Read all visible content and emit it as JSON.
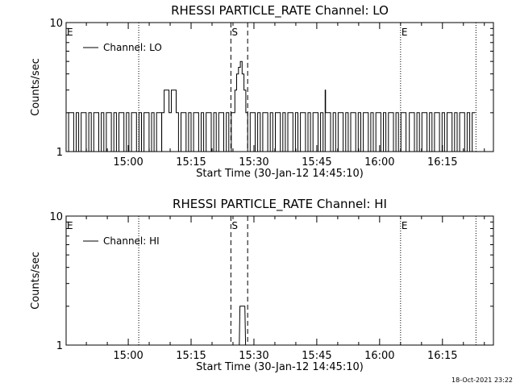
{
  "timestamp": "18-Oct-2021 23:22",
  "chart_data": [
    {
      "type": "line",
      "title": "RHESSI PARTICLE_RATE Channel: LO",
      "xlabel": "Start Time (30-Jan-12 14:45:10)",
      "ylabel": "Counts/sec",
      "yscale": "log",
      "ylim": [
        1,
        10
      ],
      "y_tick_labels": [
        "1",
        "10"
      ],
      "xlim_minutes": [
        0,
        102
      ],
      "x_tick_labels": [
        "15:00",
        "15:15",
        "15:30",
        "15:45",
        "16:00",
        "16:15"
      ],
      "legend": {
        "entries": [
          "Channel: LO"
        ],
        "placement": "top-left"
      },
      "markers": [
        {
          "label": "E",
          "time": "14:45:10",
          "style": "dotted"
        },
        {
          "label": "",
          "time": "15:02:30",
          "style": "dotted"
        },
        {
          "label": "S",
          "time": "15:24:30",
          "style": "dashed"
        },
        {
          "label": "",
          "time": "15:28:30",
          "style": "dashed"
        },
        {
          "label": "E",
          "time": "16:05:00",
          "style": "dotted"
        },
        {
          "label": "",
          "time": "16:23:00",
          "style": "dotted"
        }
      ],
      "series": [
        {
          "name": "Channel: LO",
          "segments": [
            {
              "start": "14:45:10",
              "end": "15:08:00",
              "pattern": "alternating",
              "values": [
                1,
                2
              ]
            },
            {
              "start": "15:08:00",
              "end": "15:12:00",
              "values": [
                2,
                3,
                3,
                2,
                3,
                3,
                2
              ]
            },
            {
              "start": "15:12:00",
              "end": "15:25:00",
              "pattern": "alternating",
              "values": [
                1,
                2
              ]
            },
            {
              "start": "15:25:00",
              "end": "15:28:30",
              "values": [
                2,
                3,
                4,
                4.5,
                5,
                4,
                3,
                2
              ]
            },
            {
              "start": "15:28:30",
              "end": "16:06:30",
              "pattern": "alternating",
              "values": [
                1,
                2
              ]
            },
            {
              "start": "15:46:30",
              "end": "15:48:00",
              "values": [
                2,
                3,
                2
              ]
            },
            {
              "start": "16:06:30",
              "end": "16:22:50",
              "pattern": "alternating",
              "values": [
                1,
                2
              ]
            }
          ]
        }
      ]
    },
    {
      "type": "line",
      "title": "RHESSI PARTICLE_RATE Channel: HI",
      "xlabel": "Start Time (30-Jan-12 14:45:10)",
      "ylabel": "Counts/sec",
      "yscale": "log",
      "ylim": [
        1,
        10
      ],
      "y_tick_labels": [
        "1",
        "10"
      ],
      "xlim_minutes": [
        0,
        102
      ],
      "x_tick_labels": [
        "15:00",
        "15:15",
        "15:30",
        "15:45",
        "16:00",
        "16:15"
      ],
      "legend": {
        "entries": [
          "Channel: HI"
        ],
        "placement": "top-left"
      },
      "markers": [
        {
          "label": "E",
          "time": "14:45:10",
          "style": "dotted"
        },
        {
          "label": "",
          "time": "15:02:30",
          "style": "dotted"
        },
        {
          "label": "S",
          "time": "15:24:30",
          "style": "dashed"
        },
        {
          "label": "",
          "time": "15:28:30",
          "style": "dashed"
        },
        {
          "label": "E",
          "time": "16:05:00",
          "style": "dotted"
        },
        {
          "label": "",
          "time": "16:23:00",
          "style": "dotted"
        }
      ],
      "series": [
        {
          "name": "Channel: HI",
          "points": [
            {
              "time": "15:26:30",
              "value": 1
            },
            {
              "time": "15:26:40",
              "value": 2
            },
            {
              "time": "15:27:50",
              "value": 2
            },
            {
              "time": "15:28:00",
              "value": 1
            }
          ]
        }
      ]
    }
  ]
}
